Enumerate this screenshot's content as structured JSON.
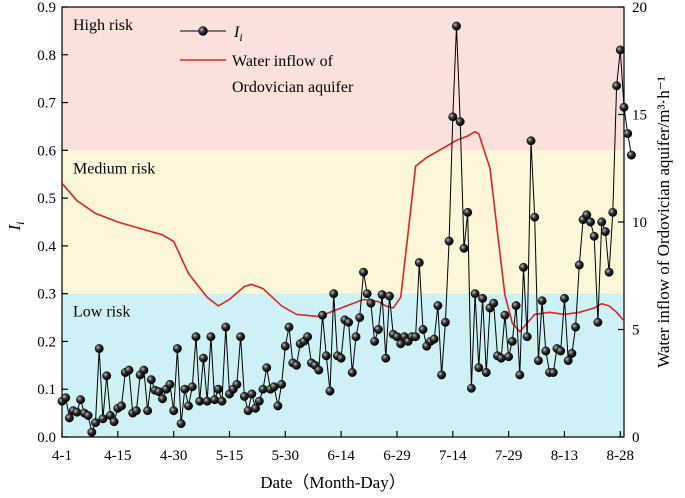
{
  "chart_data": {
    "type": "line",
    "xlabel": "Date（Month-Day）",
    "ylabel_left": "I",
    "ylabel_left_sub": "i",
    "ylabel_right": "Water inflow of Ordovician aquifer/m³·h⁻¹",
    "xlim": [
      1,
      152
    ],
    "ylim_left": [
      0,
      0.9
    ],
    "ylim_right": [
      0,
      20
    ],
    "x_ticks": [
      {
        "x": 1,
        "label": "4-1"
      },
      {
        "x": 16,
        "label": "4-15"
      },
      {
        "x": 31,
        "label": "4-30"
      },
      {
        "x": 46,
        "label": "5-15"
      },
      {
        "x": 61,
        "label": "5-30"
      },
      {
        "x": 76,
        "label": "6-14"
      },
      {
        "x": 91,
        "label": "6-29"
      },
      {
        "x": 106,
        "label": "7-14"
      },
      {
        "x": 121,
        "label": "7-29"
      },
      {
        "x": 136,
        "label": "8-13"
      },
      {
        "x": 151,
        "label": "8-28"
      }
    ],
    "y_ticks_left": [
      "0.0",
      "0.1",
      "0.2",
      "0.3",
      "0.4",
      "0.5",
      "0.6",
      "0.7",
      "0.8",
      "0.9"
    ],
    "y_ticks_right": [
      "0",
      "5",
      "10",
      "15",
      "20"
    ],
    "zones": [
      {
        "name": "High risk",
        "from": 0.6,
        "to": 0.9,
        "color": "#fbe1dc"
      },
      {
        "name": "Medium risk",
        "from": 0.3,
        "to": 0.6,
        "color": "#fdf6d8"
      },
      {
        "name": "Low risk",
        "from": 0.0,
        "to": 0.3,
        "color": "#cdf1f4"
      }
    ],
    "legend": [
      {
        "label": "I",
        "sub": "i",
        "kind": "marker-line",
        "color": "#000000"
      },
      {
        "label": "Water inflow of",
        "label2": "Ordovician aquifer",
        "kind": "line",
        "color": "#e02424"
      }
    ],
    "series": [
      {
        "name": "I_i",
        "axis": "left",
        "color": "#000000",
        "values": [
          0.075,
          0.082,
          0.04,
          0.055,
          0.052,
          0.078,
          0.05,
          0.045,
          0.01,
          0.03,
          0.185,
          0.038,
          0.128,
          0.045,
          0.032,
          0.06,
          0.065,
          0.135,
          0.14,
          0.05,
          0.055,
          0.13,
          0.14,
          0.055,
          0.12,
          0.098,
          0.095,
          0.08,
          0.1,
          0.11,
          0.055,
          0.185,
          0.028,
          0.1,
          0.065,
          0.105,
          0.21,
          0.075,
          0.165,
          0.075,
          0.21,
          0.078,
          0.1,
          0.075,
          0.23,
          0.09,
          0.1,
          0.11,
          0.21,
          0.085,
          0.055,
          0.09,
          0.06,
          0.075,
          0.1,
          0.145,
          0.1,
          0.105,
          0.065,
          0.11,
          0.19,
          0.23,
          0.155,
          0.15,
          0.195,
          0.2,
          0.21,
          0.155,
          0.15,
          0.14,
          0.255,
          0.17,
          0.096,
          0.3,
          0.17,
          0.165,
          0.245,
          0.24,
          0.135,
          0.21,
          0.25,
          0.345,
          0.3,
          0.28,
          0.2,
          0.225,
          0.298,
          0.165,
          0.295,
          0.215,
          0.21,
          0.195,
          0.21,
          0.2,
          0.21,
          0.21,
          0.365,
          0.225,
          0.19,
          0.2,
          0.205,
          0.275,
          0.13,
          0.24,
          0.41,
          0.67,
          0.86,
          0.66,
          0.395,
          0.47,
          0.102,
          0.3,
          0.145,
          0.29,
          0.135,
          0.27,
          0.28,
          0.17,
          0.165,
          0.255,
          0.168,
          0.2,
          0.275,
          0.13,
          0.355,
          0.21,
          0.62,
          0.46,
          0.16,
          0.285,
          0.18,
          0.135,
          0.135,
          0.185,
          0.18,
          0.29,
          0.16,
          0.175,
          0.23,
          0.36,
          0.455,
          0.465,
          0.45,
          0.42,
          0.24,
          0.45,
          0.43,
          0.345,
          0.47,
          0.735,
          0.81,
          0.69,
          0.635,
          0.59
        ]
      },
      {
        "name": "Water inflow of Ordovician aquifer",
        "axis": "right",
        "color": "#e02424",
        "points": [
          [
            1,
            11.8
          ],
          [
            5,
            11.0
          ],
          [
            10,
            10.4
          ],
          [
            16,
            10.0
          ],
          [
            22,
            9.7
          ],
          [
            28,
            9.4
          ],
          [
            31,
            9.1
          ],
          [
            35,
            7.6
          ],
          [
            40,
            6.5
          ],
          [
            43,
            6.1
          ],
          [
            46,
            6.4
          ],
          [
            50,
            7.0
          ],
          [
            52,
            7.1
          ],
          [
            55,
            6.9
          ],
          [
            60,
            6.1
          ],
          [
            64,
            5.7
          ],
          [
            70,
            5.6
          ],
          [
            76,
            6.0
          ],
          [
            82,
            6.4
          ],
          [
            86,
            6.3
          ],
          [
            88,
            6.1
          ],
          [
            90,
            6.0
          ],
          [
            92,
            6.5
          ],
          [
            94,
            9.5
          ],
          [
            96,
            12.6
          ],
          [
            99,
            13.0
          ],
          [
            103,
            13.4
          ],
          [
            107,
            13.8
          ],
          [
            110,
            14.0
          ],
          [
            112,
            14.2
          ],
          [
            113,
            14.1
          ],
          [
            116,
            12.5
          ],
          [
            118,
            9.5
          ],
          [
            120,
            6.6
          ],
          [
            122,
            5.3
          ],
          [
            124,
            4.9
          ],
          [
            126,
            5.3
          ],
          [
            128,
            5.7
          ],
          [
            132,
            5.8
          ],
          [
            136,
            5.7
          ],
          [
            140,
            5.8
          ],
          [
            144,
            6.0
          ],
          [
            146,
            6.2
          ],
          [
            148,
            6.1
          ],
          [
            150,
            5.8
          ],
          [
            152,
            5.4
          ]
        ]
      }
    ]
  }
}
